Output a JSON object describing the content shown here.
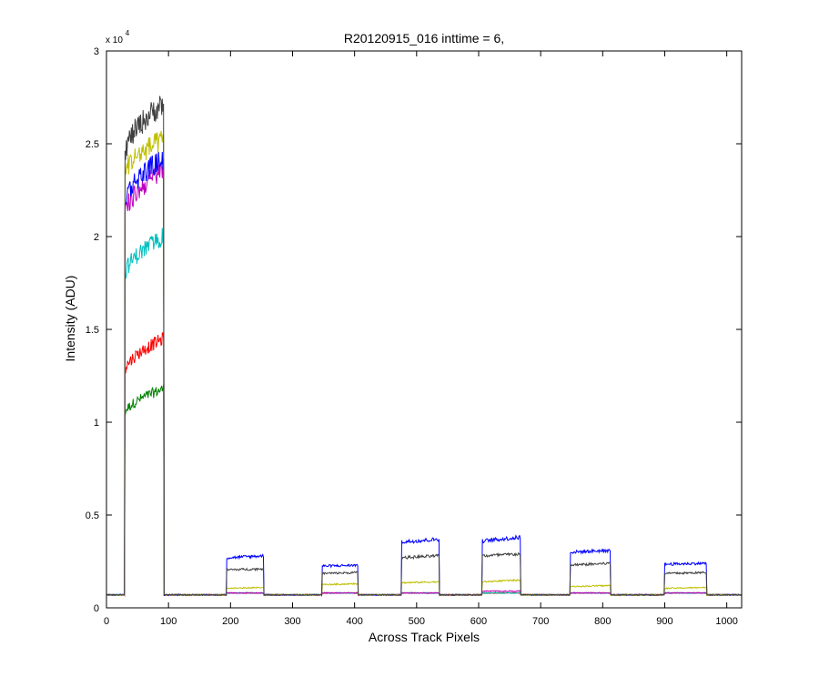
{
  "chart_data": {
    "type": "line",
    "title": "R20120915_016 inttime = 6,",
    "xlabel": "Across Track Pixels",
    "ylabel": "Intensity (ADU)",
    "y_exponent_label": "x 10",
    "y_exponent_power": "4",
    "xlim": [
      0,
      1024
    ],
    "ylim": [
      0,
      3
    ],
    "y_scale_factor": 10000,
    "xticks": [
      "0",
      "100",
      "200",
      "300",
      "400",
      "500",
      "600",
      "700",
      "800",
      "900",
      "1000"
    ],
    "yticks": [
      "0",
      "0.5",
      "1",
      "1.5",
      "2",
      "2.5",
      "3"
    ],
    "grid": false,
    "legend": "none",
    "baseline": 0.07,
    "segments": [
      {
        "x0": 30,
        "x1": 92
      },
      {
        "x0": 194,
        "x1": 253
      },
      {
        "x0": 348,
        "x1": 405
      },
      {
        "x0": 476,
        "x1": 536
      },
      {
        "x0": 606,
        "x1": 667
      },
      {
        "x0": 748,
        "x1": 812
      },
      {
        "x0": 900,
        "x1": 967
      }
    ],
    "series": [
      {
        "color": "#404040",
        "levels": [
          2.45,
          0.2,
          0.18,
          0.26,
          0.27,
          0.22,
          0.18
        ],
        "peak": [
          2.72,
          0.21,
          0.19,
          0.28,
          0.29,
          0.24,
          0.19
        ]
      },
      {
        "color": "#bfbf00",
        "levels": [
          2.35,
          0.1,
          0.12,
          0.13,
          0.13,
          0.11,
          0.1
        ],
        "peak": [
          2.52,
          0.11,
          0.13,
          0.14,
          0.15,
          0.12,
          0.11
        ]
      },
      {
        "color": "#0000ff",
        "levels": [
          2.2,
          0.26,
          0.22,
          0.34,
          0.34,
          0.29,
          0.23
        ],
        "peak": [
          2.42,
          0.28,
          0.23,
          0.37,
          0.38,
          0.31,
          0.24
        ]
      },
      {
        "color": "#bf00bf",
        "levels": [
          2.12,
          0.08,
          0.08,
          0.08,
          0.09,
          0.08,
          0.08
        ],
        "peak": [
          2.36,
          0.08,
          0.08,
          0.08,
          0.09,
          0.08,
          0.08
        ]
      },
      {
        "color": "#00bfbf",
        "levels": [
          1.8,
          0.08,
          0.08,
          0.08,
          0.08,
          0.08,
          0.08
        ],
        "peak": [
          2.0,
          0.08,
          0.08,
          0.08,
          0.08,
          0.08,
          0.08
        ]
      },
      {
        "color": "#ff0000",
        "levels": [
          1.28,
          0.08,
          0.08,
          0.08,
          0.08,
          0.08,
          0.08
        ],
        "peak": [
          1.45,
          0.08,
          0.08,
          0.08,
          0.08,
          0.08,
          0.08
        ]
      },
      {
        "color": "#008000",
        "levels": [
          1.05,
          0.08,
          0.08,
          0.08,
          0.08,
          0.08,
          0.08
        ],
        "peak": [
          1.18,
          0.08,
          0.08,
          0.08,
          0.08,
          0.08,
          0.08
        ]
      }
    ]
  }
}
